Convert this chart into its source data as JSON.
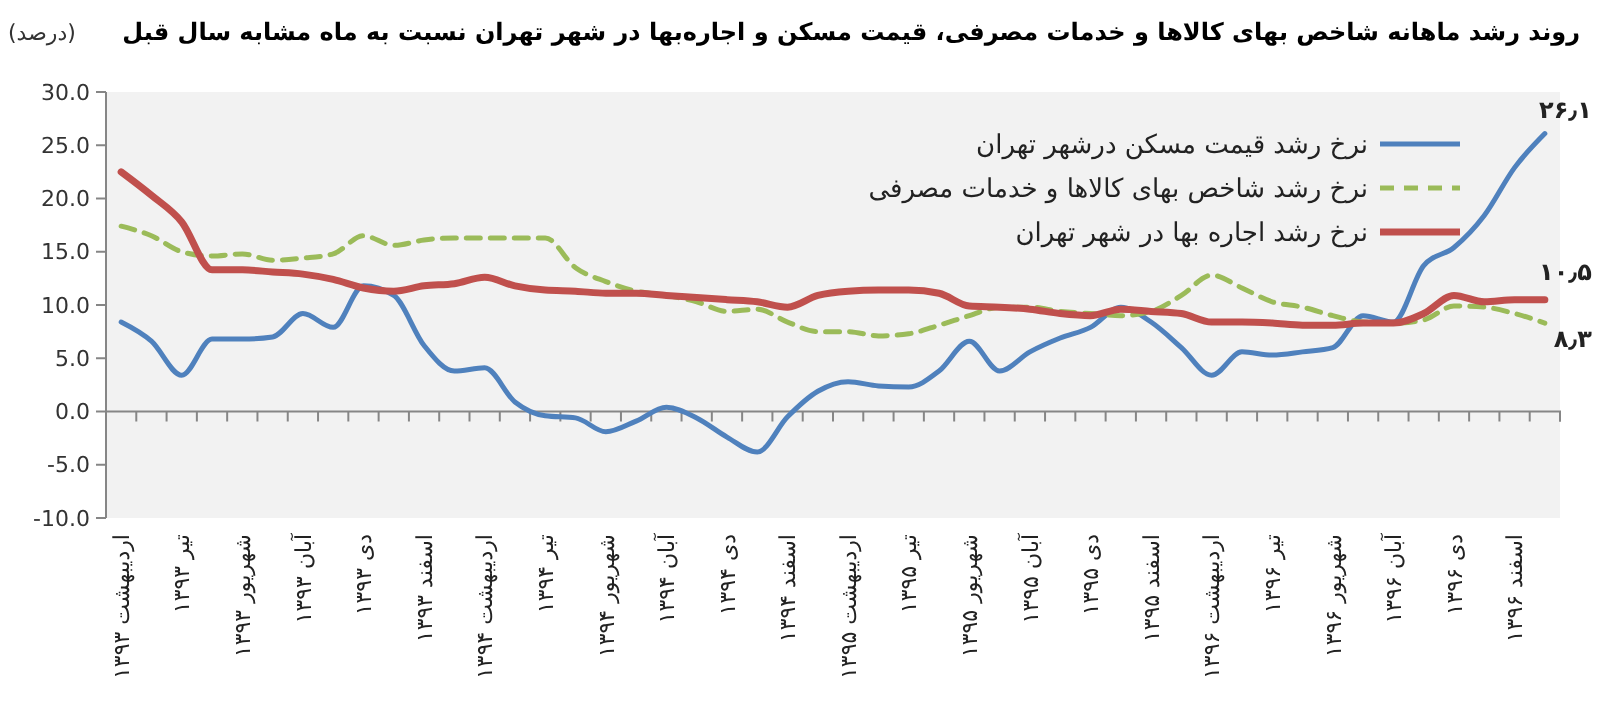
{
  "chart_data": {
    "type": "line",
    "title": "روند رشد ماهانه شاخص بهای کالاها و خدمات مصرفی، قیمت مسکن و اجاره‌بها در شهر تهران نسبت به ماه مشابه سال قبل",
    "ylabel": "(درصد)",
    "categories": [
      "اردیبهشت ۱۳۹۳",
      null,
      "تیر ۱۳۹۳",
      null,
      "شهریور ۱۳۹۳",
      null,
      "آبان ۱۳۹۳",
      null,
      "دی ۱۳۹۳",
      null,
      "اسفند ۱۳۹۳",
      null,
      "اردیبهشت ۱۳۹۴",
      null,
      "تیر ۱۳۹۴",
      null,
      "شهریور ۱۳۹۴",
      null,
      "آبان ۱۳۹۴",
      null,
      "دی ۱۳۹۴",
      null,
      "اسفند ۱۳۹۴",
      null,
      "اردیبهشت ۱۳۹۵",
      null,
      "تیر ۱۳۹۵",
      null,
      "شهریور ۱۳۹۵",
      null,
      "آبان ۱۳۹۵",
      null,
      "دی ۱۳۹۵",
      null,
      "اسفند ۱۳۹۵",
      null,
      "اردیبهشت ۱۳۹۶",
      null,
      "تیر ۱۳۹۶",
      null,
      "شهریور ۱۳۹۶",
      null,
      "آبان ۱۳۹۶",
      null,
      "دی ۱۳۹۶",
      null,
      "اسفند ۱۳۹۶",
      null
    ],
    "series": [
      {
        "name": "نرخ رشد قیمت مسکن درشهر تهران",
        "color": "#4f81bd",
        "line_style": "solid",
        "values": [
          8.4,
          6.6,
          3.4,
          6.8,
          6.8,
          7.0,
          9.2,
          7.9,
          11.8,
          10.9,
          6.2,
          3.8,
          4.1,
          0.9,
          -0.4,
          -0.6,
          -1.9,
          -0.9,
          0.4,
          -0.6,
          -2.4,
          -3.8,
          -0.5,
          1.9,
          2.8,
          2.4,
          2.3,
          3.8,
          6.6,
          3.8,
          5.6,
          6.9,
          7.9,
          9.8,
          8.4,
          6.0,
          3.4,
          5.6,
          5.3,
          5.6,
          6.0,
          9.0,
          8.4,
          13.7,
          15.4,
          18.4,
          22.9,
          26.1
        ]
      },
      {
        "name": "نرخ رشد شاخص بهای کالاها و خدمات مصرفی",
        "color": "#9bbb59",
        "line_style": "dashed",
        "values": [
          17.4,
          16.5,
          15.0,
          14.6,
          14.8,
          14.2,
          14.4,
          14.8,
          16.5,
          15.6,
          16.1,
          16.3,
          16.3,
          16.3,
          16.3,
          13.5,
          12.2,
          11.3,
          10.9,
          10.3,
          9.4,
          9.6,
          8.4,
          7.5,
          7.5,
          7.1,
          7.3,
          8.1,
          9.0,
          9.8,
          9.8,
          9.4,
          9.2,
          9.0,
          9.4,
          10.9,
          12.8,
          11.6,
          10.3,
          9.8,
          9.0,
          8.4,
          8.3,
          8.6,
          9.9,
          9.8,
          9.2,
          8.3
        ]
      },
      {
        "name": "نرخ رشد اجاره بها در شهر تهران",
        "color": "#c0504d",
        "line_style": "solid",
        "values": [
          22.5,
          20.3,
          17.8,
          13.3,
          13.3,
          13.1,
          12.9,
          12.4,
          11.6,
          11.3,
          11.8,
          12.0,
          12.6,
          11.8,
          11.4,
          11.3,
          11.1,
          11.1,
          10.9,
          10.7,
          10.5,
          10.3,
          9.8,
          10.9,
          11.3,
          11.4,
          11.4,
          11.1,
          9.9,
          9.8,
          9.6,
          9.2,
          9.0,
          9.6,
          9.4,
          9.2,
          8.4,
          8.4,
          8.3,
          8.1,
          8.1,
          8.3,
          8.3,
          9.2,
          10.9,
          10.3,
          10.5,
          10.5
        ]
      }
    ],
    "ylim": [
      -10,
      30
    ],
    "yticks": [
      {
        "value": -10,
        "label": "-10.0"
      },
      {
        "value": -5,
        "label": "-5.0"
      },
      {
        "value": 0,
        "label": "0.0"
      },
      {
        "value": 5,
        "label": "5.0"
      },
      {
        "value": 10,
        "label": "10.0"
      },
      {
        "value": 15,
        "label": "15.0"
      },
      {
        "value": 20,
        "label": "20.0"
      },
      {
        "value": 25,
        "label": "25.0"
      },
      {
        "value": 30,
        "label": "30.0"
      }
    ],
    "grid": false,
    "legend": "top right",
    "annotations": [
      "۲۶٫۱",
      "۱۰٫۵",
      "۸٫۳"
    ]
  }
}
